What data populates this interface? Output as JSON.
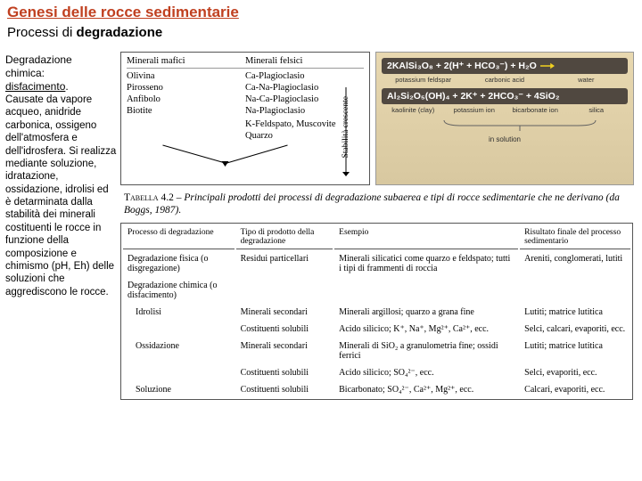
{
  "title": "Genesi delle rocce sedimentarie",
  "subtitle_pre": "Processi di ",
  "subtitle_bold": "degradazione",
  "left": {
    "heading_l1": "Degradazione",
    "heading_l2": "chimica:",
    "heading_l3": "disfacimento",
    "body": "Causate da vapore acqueo, anidride carbonica, ossigeno dell'atmosfera e dell'idrosfera. Si realizza mediante soluzione, idratazione, ossidazione, idrolisi ed è detarminata dalla stabilità dei minerali costituenti le rocce in funzione della composizione e chimismo (pH, Eh) delle soluzioni che aggrediscono le rocce."
  },
  "mineral": {
    "hdr1": "Minerali mafici",
    "hdr2": "Minerali felsici",
    "col1": [
      "Olivina",
      "Pirosseno",
      "Anfibolo",
      "Biotite"
    ],
    "col2": [
      "Ca-Plagioclasio",
      "Ca-Na-Plagioclasio",
      "Na-Ca-Plagioclasio",
      "Na-Plagioclasio",
      "",
      "K-Feldspato, Muscovite",
      "Quarzo"
    ],
    "vert_label": "Stabilità crescente"
  },
  "chem": {
    "eq1": "2KAlSi₃O₈ + 2(H⁺ + HCO₃⁻) + H₂O",
    "lbl1": [
      "potassium feldspar",
      "carbonic acid",
      "water"
    ],
    "eq2": "Al₂Si₂O₅(OH)₄ + 2K⁺ + 2HCO₃⁻ + 4SiO₂",
    "lbl2": [
      "kaolinite (clay)",
      "potassium ion",
      "bicarbonate ion",
      "silica"
    ],
    "insol": "in solution"
  },
  "caption_tab": "Tabella 4.2",
  "caption_text": " – Principali prodotti dei processi di degradazione subaerea e tipi di rocce sedimentarie che ne derivano (da Boggs, 1987).",
  "table": {
    "headers": [
      "Processo di degradazione",
      "Tipo di prodotto della degradazione",
      "Esempio",
      "Risultato finale del processo sedimentario"
    ],
    "rows": [
      [
        "Degradazione fisica (o disgregazione)",
        "Residui particellari",
        "Minerali silicatici come quarzo e feldspato; tutti i tipi di frammenti di roccia",
        "Areniti, conglomerati, lutiti"
      ],
      [
        "Degradazione chimica (o disfacimento)",
        "",
        "",
        ""
      ],
      [
        "Idrolisi",
        "Minerali secondari",
        "Minerali argillosi; quarzo a grana fine",
        "Lutiti; matrice lutitica"
      ],
      [
        "",
        "Costituenti solubili",
        "Acido silicico; K⁺, Na⁺, Mg²⁺, Ca²⁺, ecc.",
        "Selci, calcari, evaporiti, ecc."
      ],
      [
        "Ossidazione",
        "Minerali secondari",
        "Minerali di SiO₂ a granulometria fine; ossidi ferrici",
        "Lutiti; matrice lutitica"
      ],
      [
        "",
        "Costituenti solubili",
        "Acido silicico; SO₄²⁻, ecc.",
        "Selci, evaporiti, ecc."
      ],
      [
        "Soluzione",
        "Costituenti solubili",
        "Bicarbonato; SO₄²⁻, Ca²⁺, Mg²⁺, ecc.",
        "Calcari, evaporiti, ecc."
      ]
    ],
    "indent_rows": [
      2,
      3,
      4,
      5,
      6
    ]
  },
  "colors": {
    "title": "#c04020",
    "chem_bg_top": "#e8d8b0",
    "chem_bg_bot": "#d8c8a0",
    "chem_bar": "#504840",
    "arrow_yellow": "#f0d020"
  }
}
